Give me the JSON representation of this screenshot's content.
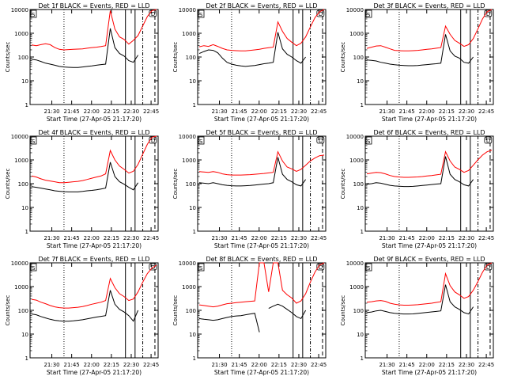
{
  "chart_data": [
    {
      "type": "line",
      "title": "Det 1f BLACK = Events, RED = LLD",
      "ylabel": "Counts/sec",
      "xlabel": "Start Time (27-Apr-05 21:17:20)",
      "x_ticks": [
        "21:30",
        "21:45",
        "22:00",
        "22:15",
        "22:30",
        "22:45"
      ],
      "y_ticks": [
        "1",
        "10",
        "100",
        "1000",
        "10000"
      ],
      "ylim": [
        1,
        10000
      ],
      "y_scale": "log",
      "markers": [
        "S",
        "D"
      ],
      "series": [
        {
          "color": "#ff0000",
          "values": [
            320,
            300,
            330,
            360,
            330,
            250,
            210,
            200,
            205,
            210,
            215,
            220,
            235,
            250,
            260,
            275,
            300,
            9000,
            1500,
            700,
            550,
            350,
            500,
            800,
            2000,
            5000,
            9000,
            12000
          ]
        },
        {
          "color": "#000000",
          "values": [
            80,
            75,
            65,
            55,
            50,
            45,
            40,
            38,
            37,
            36,
            36,
            38,
            40,
            42,
            45,
            48,
            50,
            1600,
            250,
            140,
            110,
            70,
            60,
            120,
            0,
            0,
            0,
            0
          ]
        }
      ]
    },
    {
      "type": "line",
      "title": "Det 2f BLACK = Events, RED = LLD",
      "ylabel": "Counts/sec",
      "xlabel": "Start Time (27-Apr-05 21:17:20)",
      "x_ticks": [
        "21:30",
        "21:45",
        "22:00",
        "22:15",
        "22:30",
        "22:45"
      ],
      "y_ticks": [
        "1",
        "10",
        "100",
        "1000",
        "10000"
      ],
      "ylim": [
        1,
        10000
      ],
      "y_scale": "log",
      "markers": [
        "S",
        "D"
      ],
      "series": [
        {
          "color": "#ff0000",
          "values": [
            270,
            300,
            280,
            330,
            280,
            230,
            200,
            190,
            185,
            180,
            180,
            190,
            200,
            210,
            230,
            245,
            260,
            3000,
            1200,
            600,
            420,
            300,
            380,
            700,
            1800,
            4500,
            8000,
            11000
          ]
        },
        {
          "color": "#000000",
          "values": [
            140,
            170,
            200,
            190,
            150,
            90,
            60,
            50,
            45,
            42,
            40,
            42,
            44,
            48,
            52,
            55,
            60,
            1100,
            220,
            130,
            100,
            70,
            55,
            100,
            0,
            0,
            0,
            0
          ]
        }
      ]
    },
    {
      "type": "line",
      "title": "Det 3f BLACK = Events, RED = LLD",
      "ylabel": "Counts/sec",
      "xlabel": "Start Time (27-Apr-05 21:17:20)",
      "x_ticks": [
        "21:30",
        "21:45",
        "22:00",
        "22:15",
        "22:30",
        "22:45"
      ],
      "y_ticks": [
        "1",
        "10",
        "100",
        "1000",
        "10000"
      ],
      "ylim": [
        1,
        10000
      ],
      "y_scale": "log",
      "markers": [
        "S",
        "D"
      ],
      "series": [
        {
          "color": "#ff0000",
          "values": [
            230,
            260,
            290,
            300,
            260,
            220,
            190,
            185,
            180,
            180,
            185,
            190,
            200,
            210,
            220,
            235,
            250,
            2000,
            900,
            500,
            380,
            280,
            330,
            600,
            1500,
            4000,
            8000,
            11000
          ]
        },
        {
          "color": "#000000",
          "values": [
            75,
            72,
            68,
            60,
            55,
            50,
            47,
            45,
            44,
            43,
            43,
            44,
            46,
            48,
            50,
            52,
            55,
            900,
            180,
            110,
            90,
            60,
            55,
            100,
            0,
            0,
            0,
            0
          ]
        }
      ]
    },
    {
      "type": "line",
      "title": "Det 4f BLACK = Events, RED = LLD",
      "ylabel": "Counts/sec",
      "xlabel": "Start Time (27-Apr-05 21:17:20)",
      "x_ticks": [
        "21:30",
        "21:45",
        "22:00",
        "22:15",
        "22:30",
        "22:45"
      ],
      "y_ticks": [
        "1",
        "10",
        "100",
        "1000",
        "10000"
      ],
      "ylim": [
        1,
        10000
      ],
      "y_scale": "log",
      "markers": [
        "S",
        "D"
      ],
      "series": [
        {
          "color": "#ff0000",
          "values": [
            210,
            190,
            160,
            140,
            130,
            120,
            110,
            110,
            115,
            120,
            125,
            135,
            150,
            170,
            190,
            210,
            260,
            2500,
            1000,
            550,
            400,
            280,
            330,
            650,
            1700,
            4500,
            9000,
            12000
          ]
        },
        {
          "color": "#000000",
          "values": [
            75,
            70,
            65,
            60,
            55,
            50,
            48,
            46,
            45,
            45,
            45,
            47,
            50,
            52,
            55,
            60,
            65,
            800,
            200,
            120,
            95,
            70,
            55,
            110,
            0,
            0,
            0,
            0
          ]
        }
      ]
    },
    {
      "type": "line",
      "title": "Det 5f BLACK = Events, RED = LLD",
      "ylabel": "Counts/sec",
      "xlabel": "Start Time (27-Apr-05 21:17:20)",
      "x_ticks": [
        "21:30",
        "21:45",
        "22:00",
        "22:15",
        "22:30",
        "22:45"
      ],
      "y_ticks": [
        "1",
        "10",
        "100",
        "1000",
        "10000"
      ],
      "ylim": [
        1,
        10000
      ],
      "y_scale": "log",
      "markers": [
        "S",
        "D"
      ],
      "series": [
        {
          "color": "#ff0000",
          "values": [
            320,
            310,
            300,
            320,
            300,
            260,
            240,
            230,
            230,
            230,
            235,
            240,
            250,
            260,
            270,
            285,
            300,
            2200,
            900,
            500,
            420,
            330,
            400,
            600,
            900,
            1200,
            1500,
            1600
          ]
        },
        {
          "color": "#000000",
          "values": [
            110,
            105,
            100,
            110,
            100,
            90,
            85,
            82,
            80,
            80,
            82,
            84,
            88,
            92,
            96,
            100,
            110,
            1300,
            250,
            150,
            120,
            90,
            80,
            150,
            0,
            0,
            0,
            0
          ]
        }
      ]
    },
    {
      "type": "line",
      "title": "Det 6f BLACK = Events, RED = LLD",
      "ylabel": "Counts/sec",
      "xlabel": "Start Time (27-Apr-05 21:17:20)",
      "x_ticks": [
        "21:30",
        "21:45",
        "22:00",
        "22:15",
        "22:30",
        "22:45"
      ],
      "y_ticks": [
        "1",
        "10",
        "100",
        "1000",
        "10000"
      ],
      "ylim": [
        1,
        10000
      ],
      "y_scale": "log",
      "markers": [
        "S",
        "D"
      ],
      "series": [
        {
          "color": "#ff0000",
          "values": [
            260,
            280,
            300,
            290,
            260,
            220,
            200,
            190,
            185,
            185,
            188,
            192,
            200,
            210,
            220,
            235,
            250,
            2200,
            900,
            500,
            400,
            300,
            360,
            600,
            1000,
            1600,
            2200,
            2600
          ]
        },
        {
          "color": "#000000",
          "values": [
            95,
            100,
            110,
            105,
            95,
            85,
            80,
            78,
            76,
            76,
            77,
            80,
            84,
            88,
            92,
            96,
            100,
            1400,
            250,
            150,
            120,
            90,
            80,
            150,
            0,
            0,
            0,
            0
          ]
        }
      ]
    },
    {
      "type": "line",
      "title": "Det 7f BLACK = Events, RED = LLD",
      "ylabel": "Counts/sec",
      "xlabel": "Start Time (27-Apr-05 21:17:20)",
      "x_ticks": [
        "21:30",
        "21:45",
        "22:00",
        "22:15",
        "22:30",
        "22:45"
      ],
      "y_ticks": [
        "1",
        "10",
        "100",
        "1000",
        "10000"
      ],
      "ylim": [
        1,
        10000
      ],
      "y_scale": "log",
      "markers": [
        "S",
        "D"
      ],
      "series": [
        {
          "color": "#ff0000",
          "values": [
            290,
            270,
            220,
            190,
            160,
            140,
            130,
            125,
            125,
            130,
            135,
            145,
            160,
            180,
            200,
            220,
            260,
            2200,
            900,
            500,
            380,
            260,
            300,
            600,
            1500,
            3500,
            6000,
            8000
          ]
        },
        {
          "color": "#000000",
          "values": [
            70,
            65,
            55,
            48,
            42,
            38,
            36,
            35,
            35,
            36,
            38,
            40,
            44,
            48,
            52,
            56,
            60,
            700,
            180,
            110,
            85,
            60,
            35,
            100,
            0,
            0,
            0,
            0
          ]
        }
      ]
    },
    {
      "type": "line",
      "title": "Det 8f BLACK = Events, RED = LLD",
      "ylabel": "Counts/sec",
      "xlabel": "Start Time (27-Apr-05 21:17:20)",
      "x_ticks": [
        "21:30",
        "21:45",
        "22:00",
        "22:15",
        "22:30",
        "22:45"
      ],
      "y_ticks": [
        "1",
        "10",
        "100",
        "1000",
        "10000"
      ],
      "ylim": [
        1,
        10000
      ],
      "y_scale": "log",
      "markers": [
        "S",
        "D"
      ],
      "series": [
        {
          "color": "#ff0000",
          "values": [
            170,
            160,
            150,
            140,
            150,
            170,
            190,
            200,
            210,
            220,
            230,
            240,
            250,
            10000,
            10000,
            600,
            10000,
            10000,
            700,
            450,
            330,
            200,
            250,
            500,
            1500,
            4000,
            8000,
            11000
          ]
        },
        {
          "color": "#000000",
          "values": [
            45,
            42,
            40,
            38,
            40,
            45,
            50,
            55,
            58,
            60,
            65,
            70,
            75,
            12,
            0,
            120,
            150,
            180,
            150,
            110,
            80,
            55,
            45,
            100,
            0,
            0,
            0,
            0
          ]
        }
      ]
    },
    {
      "type": "line",
      "title": "Det 9f BLACK = Events, RED = LLD",
      "ylabel": "Counts/sec",
      "xlabel": "Start Time (27-Apr-05 21:17:20)",
      "x_ticks": [
        "21:30",
        "21:45",
        "22:00",
        "22:15",
        "22:30",
        "22:45"
      ],
      "y_ticks": [
        "1",
        "10",
        "100",
        "1000",
        "10000"
      ],
      "ylim": [
        1,
        10000
      ],
      "y_scale": "log",
      "markers": [
        "S",
        "D"
      ],
      "series": [
        {
          "color": "#ff0000",
          "values": [
            220,
            230,
            250,
            260,
            240,
            200,
            180,
            170,
            165,
            165,
            168,
            172,
            180,
            190,
            200,
            215,
            230,
            3500,
            1100,
            600,
            450,
            320,
            380,
            700,
            1600,
            4000,
            8000,
            11000
          ]
        },
        {
          "color": "#000000",
          "values": [
            80,
            85,
            95,
            100,
            90,
            80,
            75,
            72,
            70,
            70,
            71,
            74,
            78,
            82,
            86,
            90,
            95,
            1200,
            230,
            140,
            110,
            80,
            70,
            140,
            0,
            0,
            0,
            0
          ]
        }
      ]
    }
  ]
}
